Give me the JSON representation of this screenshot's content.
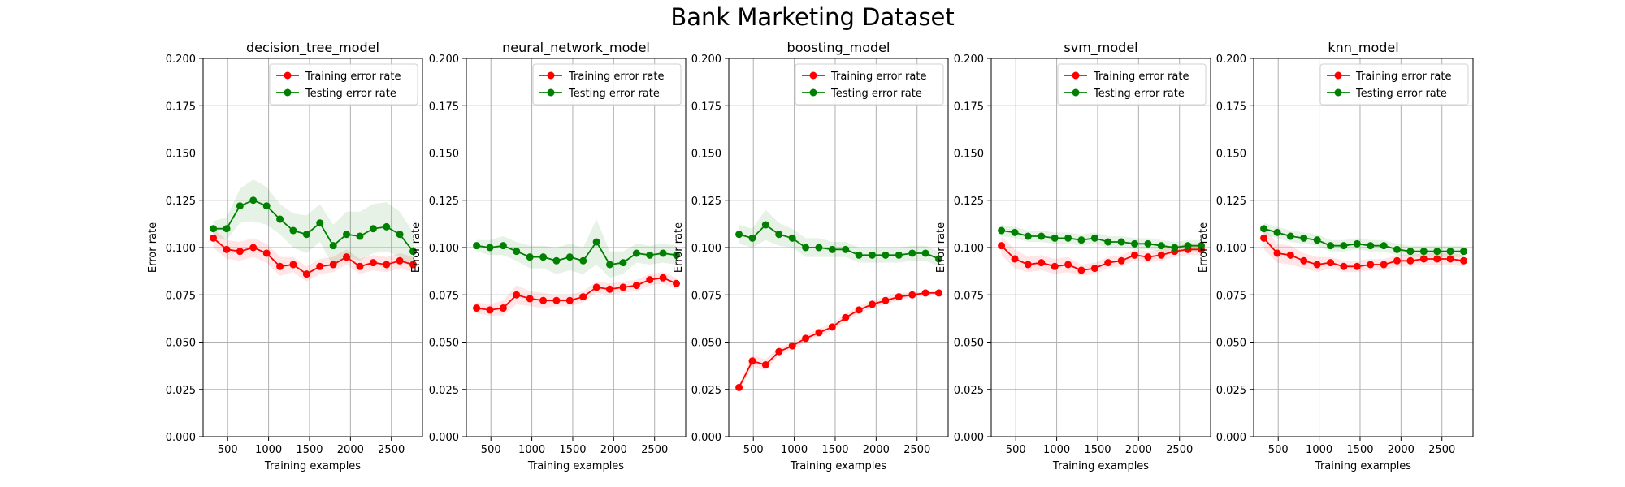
{
  "figure": {
    "title": "Bank Marketing Dataset"
  },
  "colors": {
    "training": "#ff0000",
    "testing": "#008000",
    "grid": "#b0b0b0"
  },
  "chart_data": [
    {
      "type": "line",
      "title": "decision_tree_model",
      "xlabel": "Training examples",
      "ylabel": "Error rate",
      "ylim": [
        0,
        0.2
      ],
      "xlim": [
        200,
        2880
      ],
      "grid": true,
      "legend": "top-right",
      "x_ticks": [
        500,
        1000,
        1500,
        2000,
        2500
      ],
      "y_ticks": [
        0.0,
        0.025,
        0.05,
        0.075,
        0.1,
        0.125,
        0.15,
        0.175,
        0.2
      ],
      "x": [
        325,
        488,
        650,
        813,
        976,
        1139,
        1301,
        1464,
        1627,
        1790,
        1952,
        2115,
        2278,
        2441,
        2603,
        2766
      ],
      "series": [
        {
          "name": "Training error rate",
          "color": "#ff0000",
          "values": [
            0.105,
            0.099,
            0.098,
            0.1,
            0.097,
            0.09,
            0.091,
            0.086,
            0.09,
            0.091,
            0.095,
            0.09,
            0.092,
            0.091,
            0.093,
            0.091
          ],
          "band": [
            0.005,
            0.005,
            0.005,
            0.005,
            0.005,
            0.005,
            0.004,
            0.004,
            0.004,
            0.004,
            0.004,
            0.004,
            0.004,
            0.004,
            0.004,
            0.004
          ]
        },
        {
          "name": "Testing error rate",
          "color": "#008000",
          "values": [
            0.11,
            0.11,
            0.122,
            0.125,
            0.122,
            0.115,
            0.109,
            0.107,
            0.113,
            0.101,
            0.107,
            0.106,
            0.11,
            0.111,
            0.107,
            0.098
          ],
          "band": [
            0.004,
            0.006,
            0.009,
            0.011,
            0.01,
            0.008,
            0.009,
            0.01,
            0.01,
            0.011,
            0.012,
            0.013,
            0.013,
            0.013,
            0.012,
            0.01
          ]
        }
      ]
    },
    {
      "type": "line",
      "title": "neural_network_model",
      "xlabel": "Training examples",
      "ylabel": "Error rate",
      "ylim": [
        0,
        0.2
      ],
      "xlim": [
        200,
        2880
      ],
      "grid": true,
      "legend": "top-right",
      "x_ticks": [
        500,
        1000,
        1500,
        2000,
        2500
      ],
      "y_ticks": [
        0.0,
        0.025,
        0.05,
        0.075,
        0.1,
        0.125,
        0.15,
        0.175,
        0.2
      ],
      "x": [
        325,
        488,
        650,
        813,
        976,
        1139,
        1301,
        1464,
        1627,
        1790,
        1952,
        2115,
        2278,
        2441,
        2603,
        2766
      ],
      "series": [
        {
          "name": "Training error rate",
          "color": "#ff0000",
          "values": [
            0.068,
            0.067,
            0.068,
            0.075,
            0.073,
            0.072,
            0.072,
            0.072,
            0.074,
            0.079,
            0.078,
            0.079,
            0.08,
            0.083,
            0.084,
            0.081
          ],
          "band": [
            0.003,
            0.003,
            0.004,
            0.005,
            0.004,
            0.004,
            0.003,
            0.003,
            0.003,
            0.003,
            0.003,
            0.003,
            0.003,
            0.003,
            0.003,
            0.003
          ]
        },
        {
          "name": "Testing error rate",
          "color": "#008000",
          "values": [
            0.101,
            0.1,
            0.101,
            0.098,
            0.095,
            0.095,
            0.093,
            0.095,
            0.093,
            0.103,
            0.091,
            0.092,
            0.097,
            0.096,
            0.097,
            0.096
          ],
          "band": [
            0.003,
            0.004,
            0.005,
            0.005,
            0.006,
            0.006,
            0.007,
            0.007,
            0.007,
            0.012,
            0.007,
            0.006,
            0.005,
            0.005,
            0.005,
            0.005
          ]
        }
      ]
    },
    {
      "type": "line",
      "title": "boosting_model",
      "xlabel": "Training examples",
      "ylabel": "Error rate",
      "ylim": [
        0,
        0.2
      ],
      "xlim": [
        200,
        2880
      ],
      "grid": true,
      "legend": "top-right",
      "x_ticks": [
        500,
        1000,
        1500,
        2000,
        2500
      ],
      "y_ticks": [
        0.0,
        0.025,
        0.05,
        0.075,
        0.1,
        0.125,
        0.15,
        0.175,
        0.2
      ],
      "x": [
        325,
        488,
        650,
        813,
        976,
        1139,
        1301,
        1464,
        1627,
        1790,
        1952,
        2115,
        2278,
        2441,
        2603,
        2766
      ],
      "series": [
        {
          "name": "Training error rate",
          "color": "#ff0000",
          "values": [
            0.026,
            0.04,
            0.038,
            0.045,
            0.048,
            0.052,
            0.055,
            0.058,
            0.063,
            0.067,
            0.07,
            0.072,
            0.074,
            0.075,
            0.076,
            0.076
          ],
          "band": [
            0.002,
            0.003,
            0.003,
            0.002,
            0.002,
            0.002,
            0.002,
            0.002,
            0.002,
            0.002,
            0.002,
            0.002,
            0.002,
            0.001,
            0.001,
            0.001
          ]
        },
        {
          "name": "Testing error rate",
          "color": "#008000",
          "values": [
            0.107,
            0.105,
            0.112,
            0.107,
            0.105,
            0.1,
            0.1,
            0.099,
            0.099,
            0.096,
            0.096,
            0.096,
            0.096,
            0.097,
            0.097,
            0.094
          ],
          "band": [
            0.005,
            0.005,
            0.008,
            0.006,
            0.005,
            0.005,
            0.005,
            0.004,
            0.004,
            0.004,
            0.004,
            0.004,
            0.004,
            0.004,
            0.004,
            0.004
          ]
        }
      ]
    },
    {
      "type": "line",
      "title": "svm_model",
      "xlabel": "Training examples",
      "ylabel": "Error rate",
      "ylim": [
        0,
        0.2
      ],
      "xlim": [
        200,
        2880
      ],
      "grid": true,
      "legend": "top-right",
      "x_ticks": [
        500,
        1000,
        1500,
        2000,
        2500
      ],
      "y_ticks": [
        0.0,
        0.025,
        0.05,
        0.075,
        0.1,
        0.125,
        0.15,
        0.175,
        0.2
      ],
      "x": [
        325,
        488,
        650,
        813,
        976,
        1139,
        1301,
        1464,
        1627,
        1790,
        1952,
        2115,
        2278,
        2441,
        2603,
        2766
      ],
      "series": [
        {
          "name": "Training error rate",
          "color": "#ff0000",
          "values": [
            0.101,
            0.094,
            0.091,
            0.092,
            0.09,
            0.091,
            0.088,
            0.089,
            0.092,
            0.093,
            0.096,
            0.095,
            0.096,
            0.098,
            0.099,
            0.099
          ],
          "band": [
            0.005,
            0.005,
            0.004,
            0.004,
            0.004,
            0.004,
            0.003,
            0.003,
            0.003,
            0.003,
            0.003,
            0.003,
            0.003,
            0.003,
            0.003,
            0.003
          ]
        },
        {
          "name": "Testing error rate",
          "color": "#008000",
          "values": [
            0.109,
            0.108,
            0.106,
            0.106,
            0.105,
            0.105,
            0.104,
            0.105,
            0.103,
            0.103,
            0.102,
            0.102,
            0.101,
            0.1,
            0.101,
            0.101
          ],
          "band": [
            0.003,
            0.003,
            0.003,
            0.003,
            0.003,
            0.003,
            0.003,
            0.003,
            0.003,
            0.003,
            0.003,
            0.003,
            0.003,
            0.003,
            0.003,
            0.003
          ]
        }
      ]
    },
    {
      "type": "line",
      "title": "knn_model",
      "xlabel": "Training examples",
      "ylabel": "Error rate",
      "ylim": [
        0,
        0.2
      ],
      "xlim": [
        200,
        2880
      ],
      "grid": true,
      "legend": "top-right",
      "x_ticks": [
        500,
        1000,
        1500,
        2000,
        2500
      ],
      "y_ticks": [
        0.0,
        0.025,
        0.05,
        0.075,
        0.1,
        0.125,
        0.15,
        0.175,
        0.2
      ],
      "x": [
        325,
        488,
        650,
        813,
        976,
        1139,
        1301,
        1464,
        1627,
        1790,
        1952,
        2115,
        2278,
        2441,
        2603,
        2766
      ],
      "series": [
        {
          "name": "Training error rate",
          "color": "#ff0000",
          "values": [
            0.105,
            0.097,
            0.096,
            0.093,
            0.091,
            0.092,
            0.09,
            0.09,
            0.091,
            0.091,
            0.093,
            0.093,
            0.094,
            0.094,
            0.094,
            0.093
          ],
          "band": [
            0.006,
            0.005,
            0.005,
            0.004,
            0.004,
            0.003,
            0.003,
            0.003,
            0.003,
            0.003,
            0.003,
            0.003,
            0.003,
            0.003,
            0.003,
            0.003
          ]
        },
        {
          "name": "Testing error rate",
          "color": "#008000",
          "values": [
            0.11,
            0.108,
            0.106,
            0.105,
            0.104,
            0.101,
            0.101,
            0.102,
            0.101,
            0.101,
            0.099,
            0.098,
            0.098,
            0.098,
            0.098,
            0.098
          ],
          "band": [
            0.003,
            0.003,
            0.003,
            0.003,
            0.003,
            0.003,
            0.003,
            0.003,
            0.003,
            0.003,
            0.003,
            0.003,
            0.003,
            0.003,
            0.003,
            0.003
          ]
        }
      ]
    }
  ]
}
